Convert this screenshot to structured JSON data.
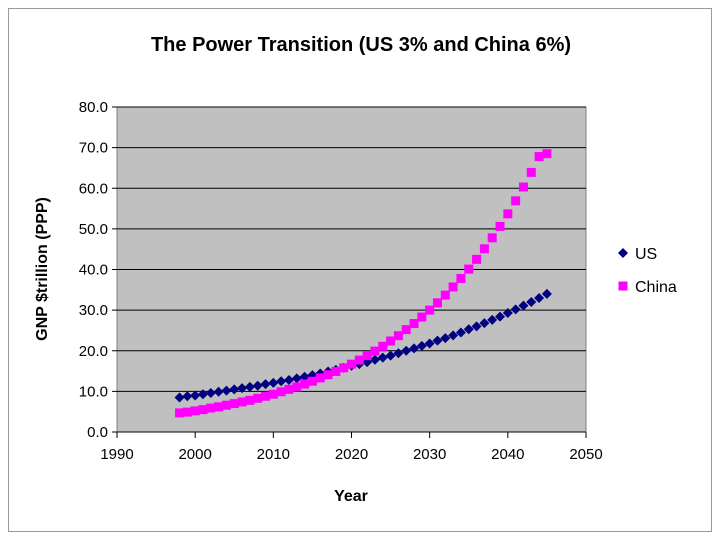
{
  "chart_data": {
    "type": "scatter",
    "title": "The Power Transition (US 3% and China 6%)",
    "xlabel": "Year",
    "ylabel": "GNP $trillion (PPP)",
    "xlim": [
      1990,
      2050
    ],
    "ylim": [
      0,
      80
    ],
    "xticks": [
      "1990",
      "2000",
      "2010",
      "2020",
      "2030",
      "2040",
      "2050"
    ],
    "yticks": [
      "0.0",
      "10.0",
      "20.0",
      "30.0",
      "40.0",
      "50.0",
      "60.0",
      "70.0",
      "80.0"
    ],
    "grid": true,
    "legend": "right",
    "x": [
      1998,
      1999,
      2000,
      2001,
      2002,
      2003,
      2004,
      2005,
      2006,
      2007,
      2008,
      2009,
      2010,
      2011,
      2012,
      2013,
      2014,
      2015,
      2016,
      2017,
      2018,
      2019,
      2020,
      2021,
      2022,
      2023,
      2024,
      2025,
      2026,
      2027,
      2028,
      2029,
      2030,
      2031,
      2032,
      2033,
      2034,
      2035,
      2036,
      2037,
      2038,
      2039,
      2040,
      2041,
      2042,
      2043,
      2044,
      2045
    ],
    "series": [
      {
        "name": "US",
        "marker": "diamond",
        "color": "#000080",
        "values": [
          8.5,
          8.8,
          9.0,
          9.3,
          9.6,
          9.9,
          10.2,
          10.5,
          10.8,
          11.1,
          11.4,
          11.8,
          12.1,
          12.5,
          12.8,
          13.2,
          13.6,
          14.0,
          14.4,
          14.9,
          15.3,
          15.8,
          16.3,
          16.7,
          17.2,
          17.8,
          18.3,
          18.8,
          19.4,
          20.0,
          20.6,
          21.2,
          21.8,
          22.5,
          23.1,
          23.8,
          24.5,
          25.3,
          26.0,
          26.8,
          27.6,
          28.4,
          29.3,
          30.2,
          31.1,
          32.0,
          33.0,
          34.0
        ]
      },
      {
        "name": "China",
        "marker": "square",
        "color": "#ff00ff",
        "values": [
          4.7,
          4.9,
          5.2,
          5.5,
          5.9,
          6.2,
          6.6,
          7.0,
          7.4,
          7.8,
          8.3,
          8.8,
          9.3,
          9.9,
          10.5,
          11.1,
          11.8,
          12.5,
          13.3,
          14.1,
          14.9,
          15.8,
          16.7,
          17.7,
          18.8,
          19.9,
          21.1,
          22.4,
          23.7,
          25.2,
          26.7,
          28.3,
          30.0,
          31.8,
          33.7,
          35.7,
          37.8,
          40.1,
          42.5,
          45.1,
          47.8,
          50.6,
          53.7,
          56.9,
          60.3,
          63.9,
          67.8,
          68.5
        ]
      }
    ]
  }
}
